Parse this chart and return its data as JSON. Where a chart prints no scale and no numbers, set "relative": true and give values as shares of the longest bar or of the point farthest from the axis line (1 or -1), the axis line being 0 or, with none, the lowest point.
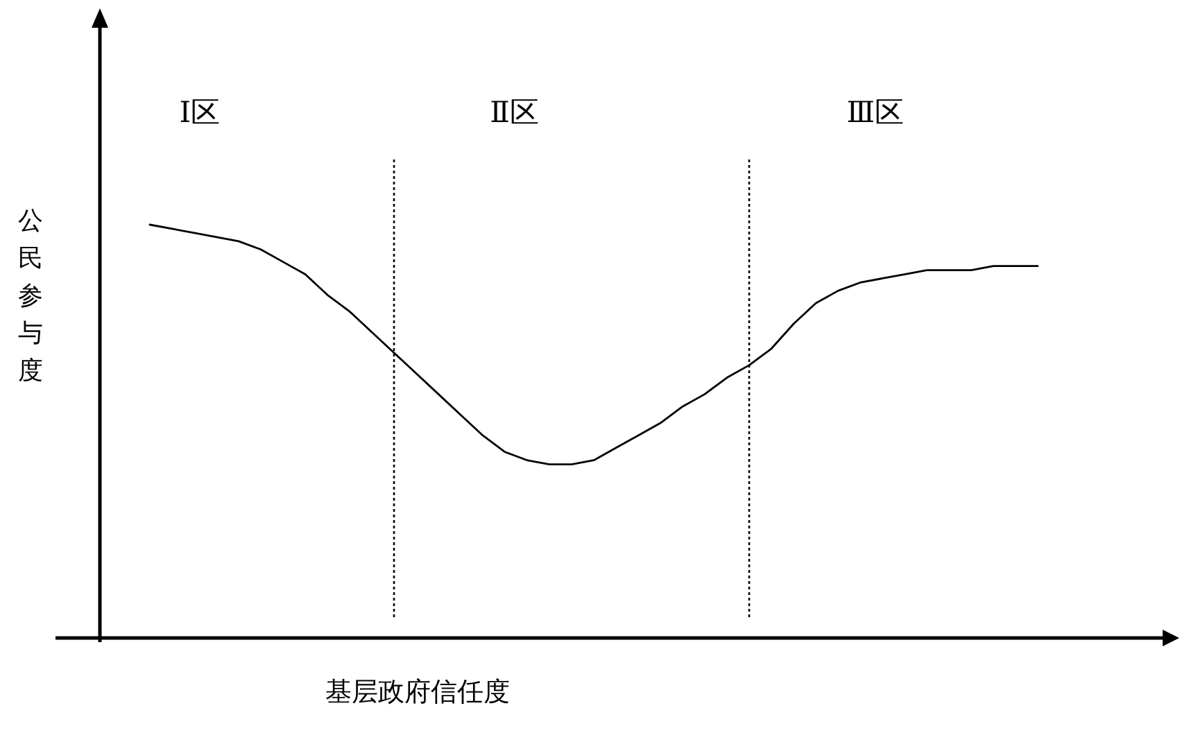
{
  "chart_data": {
    "type": "line",
    "relative": true,
    "xlabel": "基层政府信任度",
    "ylabel": "公民参与度",
    "categories": [
      null,
      null,
      null,
      null,
      null,
      null,
      null,
      null,
      null,
      null,
      null,
      null,
      null,
      null,
      null,
      null,
      null,
      null,
      null,
      null,
      null,
      null,
      null,
      null,
      null,
      null,
      null,
      null,
      null,
      null,
      null,
      null,
      null,
      null,
      null,
      null,
      null,
      null,
      null,
      null,
      null
    ],
    "series": [
      {
        "color": "#000000",
        "values": [
          1.0,
          0.99,
          0.98,
          0.97,
          0.96,
          0.94,
          0.91,
          0.88,
          0.83,
          0.79,
          0.74,
          0.69,
          0.64,
          0.59,
          0.54,
          0.49,
          0.45,
          0.43,
          0.42,
          0.42,
          0.43,
          0.46,
          0.49,
          0.52,
          0.56,
          0.59,
          0.63,
          0.66,
          0.7,
          0.76,
          0.81,
          0.84,
          0.86,
          0.87,
          0.88,
          0.89,
          0.89,
          0.89,
          0.9,
          0.9,
          0.9
        ]
      }
    ],
    "annotations": [
      "Ⅰ区",
      "Ⅱ区",
      "Ⅲ区"
    ]
  }
}
